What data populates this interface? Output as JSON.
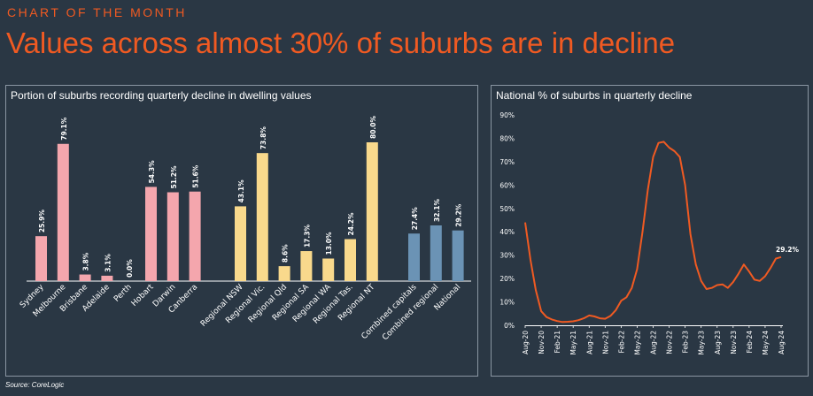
{
  "header": {
    "kicker": "CHART OF THE MONTH",
    "headline": "Values across almost 30% of suburbs are in decline"
  },
  "footer": {
    "source": "Source: CoreLogic"
  },
  "colors": {
    "background": "#2a3744",
    "accent": "#f05a22",
    "capitals": "#f4a6ad",
    "regional": "#f9d98c",
    "aggregates": "#6b93b5",
    "line": "#f05a22",
    "grid": "#3c4a58"
  },
  "chart_data": [
    {
      "type": "bar",
      "title": "Portion of suburbs recording quarterly decline in dwelling values",
      "categories": [
        "Sydney",
        "Melbourne",
        "Brisbane",
        "Adelaide",
        "Perth",
        "Hobart",
        "Darwin",
        "Canberra",
        "Regional NSW",
        "Regional Vic.",
        "Regional Qld",
        "Regional SA",
        "Regional WA",
        "Regional Tas.",
        "Regional NT",
        "Combined capitals",
        "Combined regional",
        "National"
      ],
      "groups": [
        {
          "name": "capitals",
          "color": "#f4a6ad",
          "start": 0,
          "end": 7
        },
        {
          "name": "regional",
          "color": "#f9d98c",
          "start": 8,
          "end": 14
        },
        {
          "name": "aggregates",
          "color": "#6b93b5",
          "start": 15,
          "end": 17
        }
      ],
      "values": [
        25.9,
        79.1,
        3.8,
        3.1,
        0.0,
        54.3,
        51.2,
        51.6,
        43.1,
        73.8,
        8.6,
        17.3,
        13.0,
        24.2,
        80.0,
        27.4,
        32.1,
        29.2
      ],
      "value_labels": [
        "25.9%",
        "79.1%",
        "3.8%",
        "3.1%",
        "0.0%",
        "54.3%",
        "51.2%",
        "51.6%",
        "43.1%",
        "73.8%",
        "8.6%",
        "17.3%",
        "13.0%",
        "24.2%",
        "80.0%",
        "27.4%",
        "32.1%",
        "29.2%"
      ],
      "ylim": [
        0,
        85
      ],
      "grid": false
    },
    {
      "type": "line",
      "title": "National % of suburbs in quarterly decline",
      "x": [
        "Aug-20",
        "Sep-20",
        "Oct-20",
        "Nov-20",
        "Dec-20",
        "Jan-21",
        "Feb-21",
        "Mar-21",
        "Apr-21",
        "May-21",
        "Jun-21",
        "Jul-21",
        "Aug-21",
        "Sep-21",
        "Oct-21",
        "Nov-21",
        "Dec-21",
        "Jan-22",
        "Feb-22",
        "Mar-22",
        "Apr-22",
        "May-22",
        "Jun-22",
        "Jul-22",
        "Aug-22",
        "Sep-22",
        "Oct-22",
        "Nov-22",
        "Dec-22",
        "Jan-23",
        "Feb-23",
        "Mar-23",
        "Apr-23",
        "May-23",
        "Jun-23",
        "Jul-23",
        "Aug-23",
        "Sep-23",
        "Oct-23",
        "Nov-23",
        "Dec-23",
        "Jan-24",
        "Feb-24",
        "Mar-24",
        "Apr-24",
        "May-24",
        "Jun-24",
        "Jul-24",
        "Aug-24"
      ],
      "series": [
        {
          "values": [
            44,
            28,
            15,
            6,
            3.5,
            2.5,
            1.8,
            1.4,
            1.5,
            1.7,
            2.2,
            3,
            4.2,
            3.8,
            3,
            2.8,
            4,
            6.5,
            10.5,
            12,
            16,
            24,
            40,
            58,
            72,
            78,
            78.5,
            76,
            74.5,
            72,
            60,
            39,
            26,
            19,
            15.5,
            16,
            17.2,
            17.5,
            16,
            18.5,
            22,
            26,
            23,
            19.5,
            19,
            21,
            24.5,
            28.5,
            29.2
          ]
        }
      ],
      "end_label": "29.2%",
      "x_tick_labels": [
        "Aug-20",
        "Nov-20",
        "Feb-21",
        "May-21",
        "Aug-21",
        "Nov-21",
        "Feb-22",
        "May-22",
        "Aug-22",
        "Nov-22",
        "Feb-23",
        "May-23",
        "Aug-23",
        "Nov-23",
        "Feb-24",
        "May-24",
        "Aug-24"
      ],
      "y_ticks": [
        "0%",
        "10%",
        "20%",
        "30%",
        "40%",
        "50%",
        "60%",
        "70%",
        "80%",
        "90%"
      ],
      "ylim": [
        0,
        90
      ],
      "grid": false
    }
  ]
}
